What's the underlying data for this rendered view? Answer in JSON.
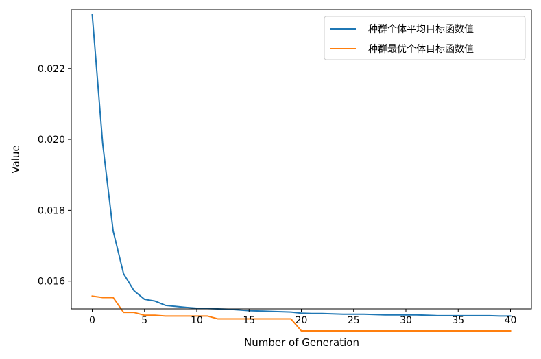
{
  "chart_data": {
    "type": "line",
    "xlabel": "Number of Generation",
    "ylabel": "Value",
    "xlim": [
      -2,
      42
    ],
    "ylim": [
      0.01522,
      0.02366
    ],
    "x_ticks": [
      0,
      5,
      10,
      15,
      20,
      25,
      30,
      35,
      40
    ],
    "y_ticks": [
      0.016,
      0.018,
      0.02,
      0.022
    ],
    "y_tick_labels": [
      "0.016",
      "0.018",
      "0.020",
      "0.022"
    ],
    "grid": false,
    "legend_position": "top-right",
    "x": [
      0,
      1,
      2,
      3,
      4,
      5,
      6,
      7,
      8,
      9,
      10,
      11,
      12,
      13,
      14,
      15,
      16,
      17,
      18,
      19,
      20,
      21,
      22,
      23,
      24,
      25,
      26,
      27,
      28,
      29,
      30,
      31,
      32,
      33,
      34,
      35,
      36,
      37,
      38,
      39,
      40
    ],
    "series": [
      {
        "name": "种群个体平均目标函数值",
        "color": "#1f77b4",
        "values": [
          0.02352,
          0.01988,
          0.01742,
          0.01621,
          0.01573,
          0.01549,
          0.01544,
          0.01532,
          0.01529,
          0.01526,
          0.01524,
          0.01523,
          0.01522,
          0.01521,
          0.01519,
          0.01517,
          0.01516,
          0.01515,
          0.01514,
          0.01513,
          0.0151,
          0.01509,
          0.01509,
          0.01508,
          0.01507,
          0.01507,
          0.01507,
          0.01506,
          0.01505,
          0.01505,
          0.01505,
          0.01505,
          0.01504,
          0.01503,
          0.01503,
          0.01503,
          0.01503,
          0.01503,
          0.01503,
          0.01502,
          0.01502
        ]
      },
      {
        "name": "种群最优个体目标函数值",
        "color": "#ff7f0e",
        "values": [
          0.01558,
          0.01554,
          0.01554,
          0.01512,
          0.01512,
          0.01504,
          0.01504,
          0.01502,
          0.01502,
          0.01502,
          0.01502,
          0.01502,
          0.01494,
          0.01494,
          0.01494,
          0.01494,
          0.01494,
          0.01494,
          0.01494,
          0.01494,
          0.0146,
          0.0146,
          0.0146,
          0.0146,
          0.0146,
          0.0146,
          0.0146,
          0.0146,
          0.0146,
          0.0146,
          0.0146,
          0.0146,
          0.0146,
          0.0146,
          0.0146,
          0.0146,
          0.0146,
          0.0146,
          0.0146,
          0.0146,
          0.0146
        ]
      }
    ]
  }
}
